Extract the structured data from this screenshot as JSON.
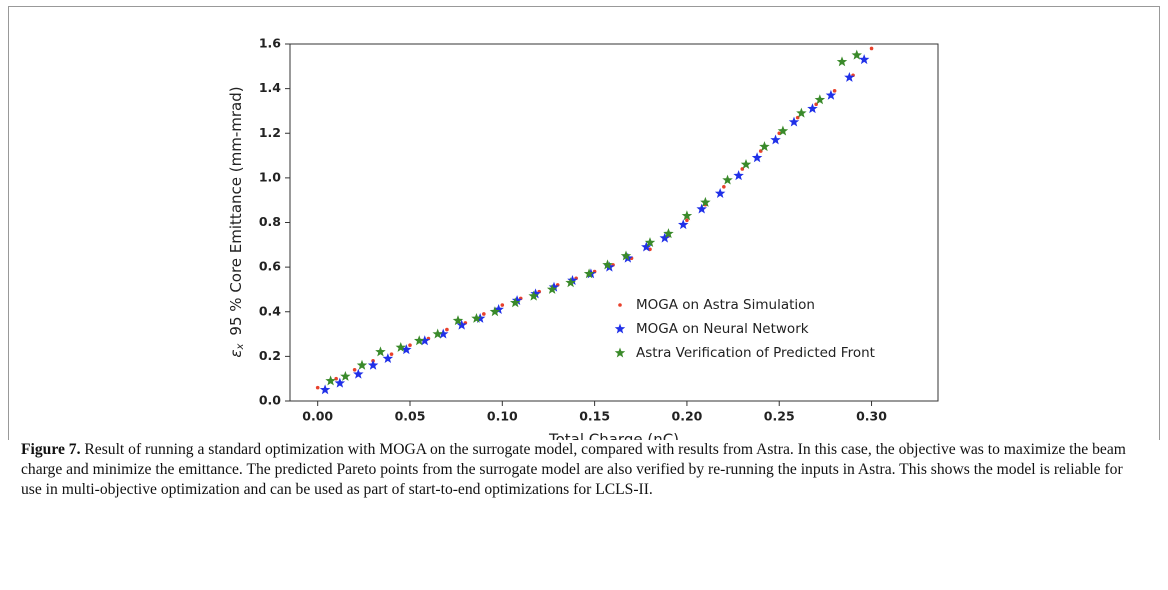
{
  "chart_data": {
    "type": "scatter",
    "x_label": "Total Charge (nC)",
    "y_label_symbol": "ε",
    "y_label_subscript": "x",
    "y_label": "95 % Core Emittance (mm-mrad)",
    "xlim": [
      -0.015,
      0.336
    ],
    "ylim": [
      0,
      1.6
    ],
    "xticks": [
      {
        "value": 0,
        "label": "0.00"
      },
      0.05,
      {
        "value": 0.1,
        "label": "0.10"
      },
      0.15,
      {
        "value": 0.2,
        "label": "0.20"
      },
      0.25,
      {
        "value": 0.3,
        "label": "0.30"
      }
    ],
    "yticks": [
      {
        "value": 0,
        "label": "0.0"
      },
      0.2,
      0.4,
      0.6,
      0.8,
      {
        "value": 1,
        "label": "1.0"
      },
      1.2,
      1.4,
      1.6
    ],
    "grid": false,
    "legend": "lower right",
    "series": [
      {
        "name": "MOGA on Astra Simulation",
        "color": "#e8412c",
        "marker": "dot",
        "x": [
          0,
          0.01,
          0.02,
          0.03,
          0.04,
          0.05,
          0.06,
          0.07,
          0.08,
          0.09,
          0.1,
          0.11,
          0.12,
          0.13,
          0.14,
          0.15,
          0.16,
          0.17,
          0.18,
          0.19,
          0.2,
          0.21,
          0.22,
          0.23,
          0.24,
          0.25,
          0.26,
          0.27,
          0.28,
          0.29,
          0.3
        ],
        "values": [
          0.06,
          0.1,
          0.14,
          0.18,
          0.21,
          0.25,
          0.28,
          0.32,
          0.35,
          0.39,
          0.43,
          0.46,
          0.49,
          0.52,
          0.55,
          0.58,
          0.61,
          0.64,
          0.68,
          0.74,
          0.81,
          0.88,
          0.96,
          1.04,
          1.12,
          1.2,
          1.27,
          1.33,
          1.39,
          1.46,
          1.58
        ]
      },
      {
        "name": "MOGA on Neural Network",
        "color": "#2030e8",
        "marker": "star",
        "x": [
          0.004,
          0.012,
          0.022,
          0.03,
          0.038,
          0.048,
          0.058,
          0.068,
          0.078,
          0.088,
          0.098,
          0.108,
          0.118,
          0.128,
          0.138,
          0.148,
          0.158,
          0.168,
          0.178,
          0.188,
          0.198,
          0.208,
          0.218,
          0.228,
          0.238,
          0.248,
          0.258,
          0.268,
          0.278,
          0.288,
          0.296
        ],
        "values": [
          0.05,
          0.08,
          0.12,
          0.16,
          0.19,
          0.23,
          0.27,
          0.3,
          0.34,
          0.37,
          0.41,
          0.45,
          0.48,
          0.51,
          0.54,
          0.57,
          0.6,
          0.64,
          0.69,
          0.73,
          0.79,
          0.86,
          0.93,
          1.01,
          1.09,
          1.17,
          1.25,
          1.31,
          1.37,
          1.45,
          1.53
        ]
      },
      {
        "name": "Astra Verification of Predicted Front",
        "color": "#3a8a2a",
        "marker": "star",
        "x": [
          0.007,
          0.015,
          0.024,
          0.034,
          0.045,
          0.055,
          0.065,
          0.076,
          0.086,
          0.096,
          0.107,
          0.117,
          0.127,
          0.137,
          0.147,
          0.157,
          0.167,
          0.18,
          0.19,
          0.2,
          0.21,
          0.222,
          0.232,
          0.242,
          0.252,
          0.262,
          0.272,
          0.284,
          0.292
        ],
        "values": [
          0.09,
          0.11,
          0.16,
          0.22,
          0.24,
          0.27,
          0.3,
          0.36,
          0.37,
          0.4,
          0.44,
          0.47,
          0.5,
          0.53,
          0.57,
          0.61,
          0.65,
          0.71,
          0.75,
          0.83,
          0.89,
          0.99,
          1.06,
          1.14,
          1.21,
          1.29,
          1.35,
          1.52,
          1.55
        ]
      }
    ]
  },
  "caption": {
    "label": "Figure 7.",
    "text": "Result of running a standard optimization with MOGA on the surrogate model, compared with results from Astra. In this case, the objective was to maximize the beam charge and minimize the emittance. The predicted Pareto points from the surrogate model are also verified by re-running the inputs in Astra. This shows the model is reliable for use in multi-objective optimization and can be used as part of start-to-end optimizations for LCLS-II."
  }
}
